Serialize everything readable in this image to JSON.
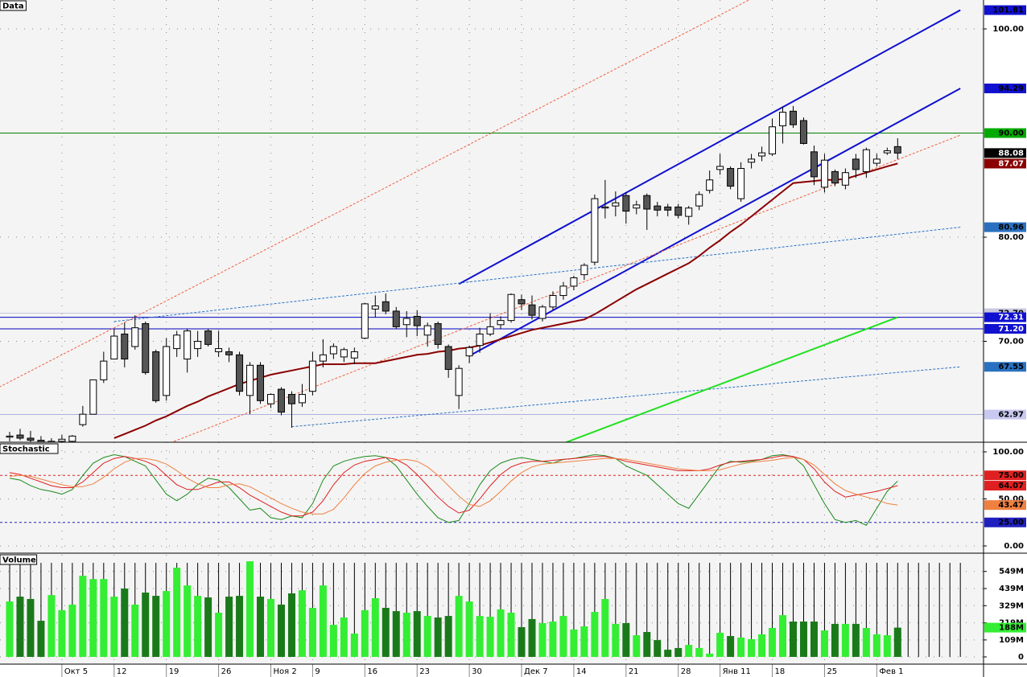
{
  "chart_data": [
    {
      "type": "candlestick",
      "title": "Data",
      "open": [
        60.8,
        61.0,
        60.7,
        60.5,
        60.2,
        60.4,
        60.4,
        62.0,
        63.0,
        66.3,
        68.3,
        70.7,
        69.5,
        71.7,
        69.0,
        64.8,
        69.3,
        68.3,
        69.3,
        71.0,
        69.0,
        69.0,
        68.7,
        64.8,
        67.7,
        64.0,
        65.4,
        64.9,
        64.1,
        65.2,
        68.1,
        68.8,
        68.5,
        68.4,
        70.3,
        73.1,
        73.8,
        72.9,
        71.6,
        72.4,
        70.6,
        71.7,
        69.5,
        64.8,
        68.6,
        69.6,
        70.7,
        71.6,
        72.0,
        74.0,
        73.5,
        72.2,
        73.3,
        74.4,
        75.3,
        76.4,
        77.6,
        82.8,
        83.0,
        84.0,
        82.8,
        84.0,
        83.0,
        82.9,
        82.9,
        82.0,
        83.0,
        84.5,
        86.5,
        86.6,
        83.7,
        87.2,
        87.8,
        88.0,
        90.7,
        92.1,
        91.2,
        88.2,
        84.8,
        86.3,
        85.0,
        87.5,
        86.3,
        87.1,
        88.1,
        88.7
      ],
      "high": [
        61.3,
        61.6,
        61.4,
        60.9,
        60.7,
        61.0,
        61.0,
        63.8,
        66.3,
        69.0,
        71.2,
        71.8,
        72.5,
        71.9,
        69.2,
        70.3,
        71.0,
        71.2,
        71.0,
        71.2,
        71.0,
        69.4,
        69.0,
        68.0,
        68.0,
        65.0,
        65.6,
        65.2,
        65.9,
        69.0,
        70.2,
        69.8,
        69.4,
        69.4,
        73.7,
        74.4,
        74.6,
        73.3,
        72.9,
        73.0,
        71.8,
        71.9,
        69.7,
        67.7,
        69.6,
        71.3,
        72.7,
        72.4,
        74.6,
        74.5,
        74.4,
        73.5,
        74.8,
        75.7,
        76.3,
        77.5,
        84.1,
        85.5,
        84.4,
        84.3,
        83.5,
        84.2,
        83.4,
        83.2,
        83.2,
        83.0,
        84.4,
        86.4,
        88.0,
        86.8,
        87.2,
        88.0,
        88.7,
        91.4,
        92.5,
        92.6,
        91.5,
        88.8,
        88.0,
        86.5,
        86.6,
        88.0,
        88.6,
        88.0,
        88.6,
        89.5
      ],
      "low": [
        60.4,
        60.5,
        60.2,
        59.9,
        59.8,
        60.0,
        60.2,
        61.8,
        63.0,
        66.0,
        68.3,
        67.5,
        69.2,
        66.8,
        64.1,
        64.3,
        68.5,
        67.0,
        68.5,
        69.5,
        68.5,
        68.0,
        64.8,
        63.0,
        64.0,
        63.6,
        62.9,
        61.7,
        63.7,
        64.8,
        67.5,
        68.3,
        68.0,
        67.8,
        70.2,
        72.3,
        72.6,
        71.2,
        70.4,
        70.5,
        69.5,
        69.3,
        66.5,
        63.5,
        67.9,
        68.9,
        70.5,
        71.2,
        71.8,
        73.0,
        72.1,
        71.9,
        73.0,
        74.0,
        74.9,
        75.9,
        77.3,
        81.8,
        82.0,
        81.3,
        82.2,
        80.7,
        82.0,
        82.0,
        81.8,
        81.2,
        82.6,
        84.2,
        86.0,
        84.6,
        83.4,
        86.6,
        87.3,
        87.8,
        89.0,
        90.5,
        88.9,
        85.0,
        84.3,
        84.9,
        84.6,
        85.7,
        85.7,
        86.8,
        87.9,
        87.5
      ],
      "close": [
        60.9,
        60.7,
        60.5,
        60.2,
        60.4,
        60.6,
        60.9,
        63.0,
        66.3,
        68.1,
        70.5,
        68.3,
        71.3,
        67.0,
        64.3,
        69.5,
        70.6,
        71.0,
        70.0,
        69.7,
        69.3,
        68.7,
        65.2,
        67.7,
        64.3,
        64.9,
        63.2,
        64.0,
        64.9,
        68.1,
        68.7,
        69.5,
        69.2,
        69.0,
        73.6,
        73.4,
        72.9,
        71.4,
        72.2,
        71.5,
        71.5,
        69.7,
        67.3,
        67.4,
        69.4,
        70.7,
        71.4,
        72.0,
        74.5,
        73.6,
        72.5,
        73.3,
        74.4,
        75.3,
        76.1,
        77.3,
        83.7,
        82.9,
        83.3,
        82.5,
        83.1,
        82.7,
        82.6,
        82.6,
        82.1,
        82.8,
        84.1,
        85.5,
        86.8,
        84.9,
        86.6,
        87.5,
        88.1,
        90.6,
        92.0,
        90.8,
        89.0,
        85.8,
        87.4,
        85.2,
        86.2,
        86.5,
        88.4,
        87.5,
        88.3,
        88.08
      ],
      "up_color": "#ffffff",
      "down_color": "#555555",
      "ylim": [
        60.31,
        102.78
      ],
      "yticks": [
        {
          "value": 100,
          "label": "100.00"
        },
        {
          "value": 80,
          "label": "80.00"
        },
        {
          "value": 70,
          "label": "70.00"
        }
      ],
      "grid": true,
      "moving_average": {
        "color": "#8b0000",
        "values": [
          null,
          null,
          null,
          null,
          null,
          null,
          null,
          null,
          null,
          null,
          60.7,
          61.1,
          61.5,
          61.9,
          62.4,
          62.8,
          63.3,
          63.8,
          64.2,
          64.7,
          65.1,
          65.5,
          65.9,
          66.2,
          66.5,
          66.8,
          67.0,
          67.2,
          67.4,
          67.6,
          67.8,
          67.8,
          67.8,
          67.9,
          67.9,
          67.9,
          68.1,
          68.3,
          68.5,
          68.7,
          68.8,
          69.0,
          69.1,
          69.3,
          69.4,
          69.6,
          69.9,
          70.2,
          70.5,
          70.8,
          71.1,
          71.3,
          71.5,
          71.7,
          71.9,
          72.1,
          72.6,
          73.2,
          73.8,
          74.4,
          75.0,
          75.5,
          76.0,
          76.5,
          77.0,
          77.5,
          78.2,
          79.0,
          79.7,
          80.5,
          81.2,
          82.0,
          82.8,
          83.6,
          84.4,
          85.2,
          85.3,
          85.4,
          85.5,
          85.5,
          85.6,
          85.9,
          86.2,
          86.5,
          86.8,
          87.07
        ]
      },
      "trendlines": [
        {
          "color": "#1010d0",
          "dash": false,
          "x": [
            43,
            91
          ],
          "values": [
            75.5,
            101.81
          ]
        },
        {
          "color": "#1010d0",
          "dash": false,
          "x": [
            44,
            91
          ],
          "values": [
            68.6,
            94.29
          ]
        },
        {
          "color": "#2a70c0",
          "dash": true,
          "x": [
            10,
            91
          ],
          "values": [
            71.9,
            80.96
          ]
        },
        {
          "color": "#2a70c0",
          "dash": true,
          "x": [
            27,
            91
          ],
          "values": [
            61.8,
            67.55
          ]
        },
        {
          "color": "#f06040",
          "dash": true,
          "x": [
            -1,
            71
          ],
          "values": [
            65.6,
            102.9
          ]
        },
        {
          "color": "#f06040",
          "dash": true,
          "x": [
            15,
            91
          ],
          "values": [
            60.1,
            89.8
          ]
        },
        {
          "color": "#20e020",
          "dash": false,
          "x": [
            53,
            85
          ],
          "values": [
            60.2,
            72.31
          ]
        }
      ],
      "hlines": [
        {
          "value": 90,
          "color": "#008000"
        },
        {
          "value": 72.7,
          "color": "#c8c8e0"
        },
        {
          "value": 72.31,
          "color": "#0000c0"
        },
        {
          "value": 71.2,
          "color": "#0000c0"
        },
        {
          "value": 62.97,
          "color": "#b0b0e0"
        }
      ],
      "tags": [
        {
          "value": 101.81,
          "label": "101.81",
          "bg": "#1010d0",
          "fg": "#000000"
        },
        {
          "value": 94.29,
          "label": "94.29",
          "bg": "#1010d0",
          "fg": "#000000"
        },
        {
          "value": 90,
          "label": "90.00",
          "bg": "#00aa00",
          "fg": "#000000"
        },
        {
          "value": 88.08,
          "label": "88.08",
          "bg": "#000000",
          "fg": "#ffffff"
        },
        {
          "value": 87.07,
          "label": "87.07",
          "bg": "#8b0000",
          "fg": "#ffffff"
        },
        {
          "value": 80.96,
          "label": "80.96",
          "bg": "#2a70c0",
          "fg": "#000000"
        },
        {
          "value": 72.7,
          "label": "72.70",
          "bg": "#c8c8e0",
          "fg": "#000000"
        },
        {
          "value": 72.31,
          "label": "72.31",
          "bg": "#1010d0",
          "fg": "#ffffff"
        },
        {
          "value": 71.2,
          "label": "71.20",
          "bg": "#1010d0",
          "fg": "#ffffff"
        },
        {
          "value": 67.55,
          "label": "67.55",
          "bg": "#2a70c0",
          "fg": "#000000"
        },
        {
          "value": 62.97,
          "label": "62.97",
          "bg": "#c8c8f0",
          "fg": "#000000"
        }
      ]
    },
    {
      "type": "line",
      "title": "Stochastic",
      "series": [
        {
          "color": "#1a8a1a",
          "values": [
            72,
            70,
            64,
            60,
            58,
            55,
            60,
            75,
            88,
            94,
            97,
            95,
            90,
            85,
            70,
            55,
            48,
            55,
            65,
            72,
            70,
            62,
            50,
            38,
            40,
            30,
            28,
            32,
            30,
            45,
            70,
            85,
            90,
            93,
            95,
            96,
            94,
            85,
            70,
            55,
            42,
            30,
            25,
            27,
            45,
            65,
            80,
            88,
            92,
            94,
            92,
            90,
            88,
            92,
            93,
            95,
            97,
            96,
            93,
            85,
            80,
            75,
            65,
            55,
            45,
            40,
            55,
            70,
            85,
            90,
            89,
            90,
            92,
            96,
            97,
            95,
            85,
            65,
            45,
            28,
            25,
            27,
            22,
            40,
            58,
            69
          ]
        },
        {
          "color": "#e02020",
          "values": [
            78,
            76,
            72,
            68,
            64,
            62,
            62,
            68,
            78,
            88,
            93,
            95,
            93,
            90,
            85,
            75,
            65,
            60,
            60,
            64,
            68,
            68,
            62,
            54,
            48,
            42,
            36,
            32,
            32,
            36,
            48,
            65,
            78,
            86,
            90,
            92,
            94,
            92,
            86,
            76,
            64,
            52,
            42,
            35,
            38,
            50,
            64,
            76,
            84,
            88,
            90,
            90,
            91,
            92,
            93,
            94,
            95,
            95,
            93,
            90,
            88,
            86,
            84,
            82,
            80,
            80,
            80,
            82,
            86,
            89,
            90,
            91,
            92,
            94,
            96,
            95,
            92,
            82,
            68,
            58,
            52,
            54,
            56,
            58,
            61,
            64.07
          ]
        },
        {
          "color": "#f08040",
          "values": [
            74,
            75,
            74,
            71,
            68,
            65,
            63,
            63,
            66,
            73,
            82,
            89,
            93,
            93,
            91,
            87,
            80,
            72,
            66,
            62,
            62,
            65,
            66,
            63,
            57,
            51,
            45,
            40,
            36,
            34,
            34,
            39,
            51,
            65,
            77,
            85,
            89,
            91,
            92,
            90,
            84,
            75,
            64,
            53,
            44,
            42,
            48,
            58,
            69,
            78,
            84,
            87,
            88,
            89,
            90,
            91,
            92,
            93,
            93,
            92,
            90,
            88,
            86,
            84,
            82,
            81,
            80,
            80,
            81,
            84,
            87,
            89,
            90,
            91,
            93,
            94,
            92,
            86,
            76,
            66,
            59,
            55,
            52,
            49,
            45,
            43.47
          ]
        }
      ],
      "ylim": [
        -7.7,
        109.4
      ],
      "yticks": [
        {
          "value": 100,
          "label": "100.00"
        },
        {
          "value": 50,
          "label": "50.00"
        },
        {
          "value": 0,
          "label": "0.00"
        }
      ],
      "grid": true,
      "hlines": [
        {
          "value": 75,
          "color": "#e02020"
        },
        {
          "value": 25,
          "color": "#2020c0"
        }
      ],
      "tags": [
        {
          "value": 75,
          "label": "75.00",
          "bg": "#e02020",
          "fg": "#000000"
        },
        {
          "value": 64.07,
          "label": "64.07",
          "bg": "#e02020",
          "fg": "#000000"
        },
        {
          "value": 43.47,
          "label": "43.47",
          "bg": "#f08040",
          "fg": "#000000"
        },
        {
          "value": 25,
          "label": "25.00",
          "bg": "#2020c0",
          "fg": "#000000"
        }
      ]
    },
    {
      "type": "bar",
      "title": "Volume",
      "categories": [
        null,
        null,
        null,
        null,
        null,
        "Окт 5",
        null,
        null,
        null,
        null,
        "12",
        null,
        null,
        null,
        null,
        "19",
        null,
        null,
        null,
        null,
        "26",
        null,
        null,
        null,
        null,
        "Ноя 2",
        null,
        null,
        null,
        "9",
        null,
        null,
        null,
        null,
        "16",
        null,
        null,
        null,
        null,
        "23",
        null,
        null,
        null,
        null,
        "30",
        null,
        null,
        null,
        null,
        "Дек 7",
        null,
        null,
        null,
        null,
        "14",
        null,
        null,
        null,
        null,
        "21",
        null,
        null,
        null,
        null,
        "28",
        null,
        null,
        null,
        "Янв 11",
        null,
        null,
        null,
        null,
        "18",
        null,
        null,
        null,
        null,
        "25",
        null,
        null,
        null,
        null,
        "Фев 1",
        null,
        null
      ],
      "values": [
        356,
        387,
        372,
        232,
        397,
        300,
        336,
        521,
        500,
        500,
        387,
        439,
        336,
        413,
        392,
        423,
        573,
        459,
        392,
        382,
        284,
        387,
        392,
        614,
        387,
        372,
        336,
        408,
        428,
        315,
        459,
        206,
        253,
        150,
        300,
        377,
        315,
        294,
        284,
        294,
        263,
        253,
        263,
        392,
        356,
        263,
        258,
        305,
        284,
        191,
        243,
        217,
        227,
        263,
        176,
        196,
        289,
        372,
        212,
        217,
        139,
        160,
        108,
        46,
        57,
        77,
        57,
        21,
        155,
        134,
        124,
        114,
        145,
        186,
        268,
        227,
        227,
        227,
        170,
        212,
        212,
        212,
        186,
        145,
        139,
        188
      ],
      "up_color": "#33ee33",
      "down_color": "#1a7a1a",
      "ylim": [
        -46.5,
        661
      ],
      "yticks": [
        0,
        {
          "value": 109,
          "label": "109M"
        },
        {
          "value": 219,
          "label": "219M"
        },
        {
          "value": 329,
          "label": "329M"
        },
        {
          "value": 439,
          "label": "439M"
        },
        {
          "value": 549,
          "label": "549M"
        }
      ],
      "grid": true,
      "tags": [
        {
          "value": 188,
          "label": "188M",
          "bg": "#33ee33",
          "fg": "#000000"
        }
      ]
    }
  ]
}
